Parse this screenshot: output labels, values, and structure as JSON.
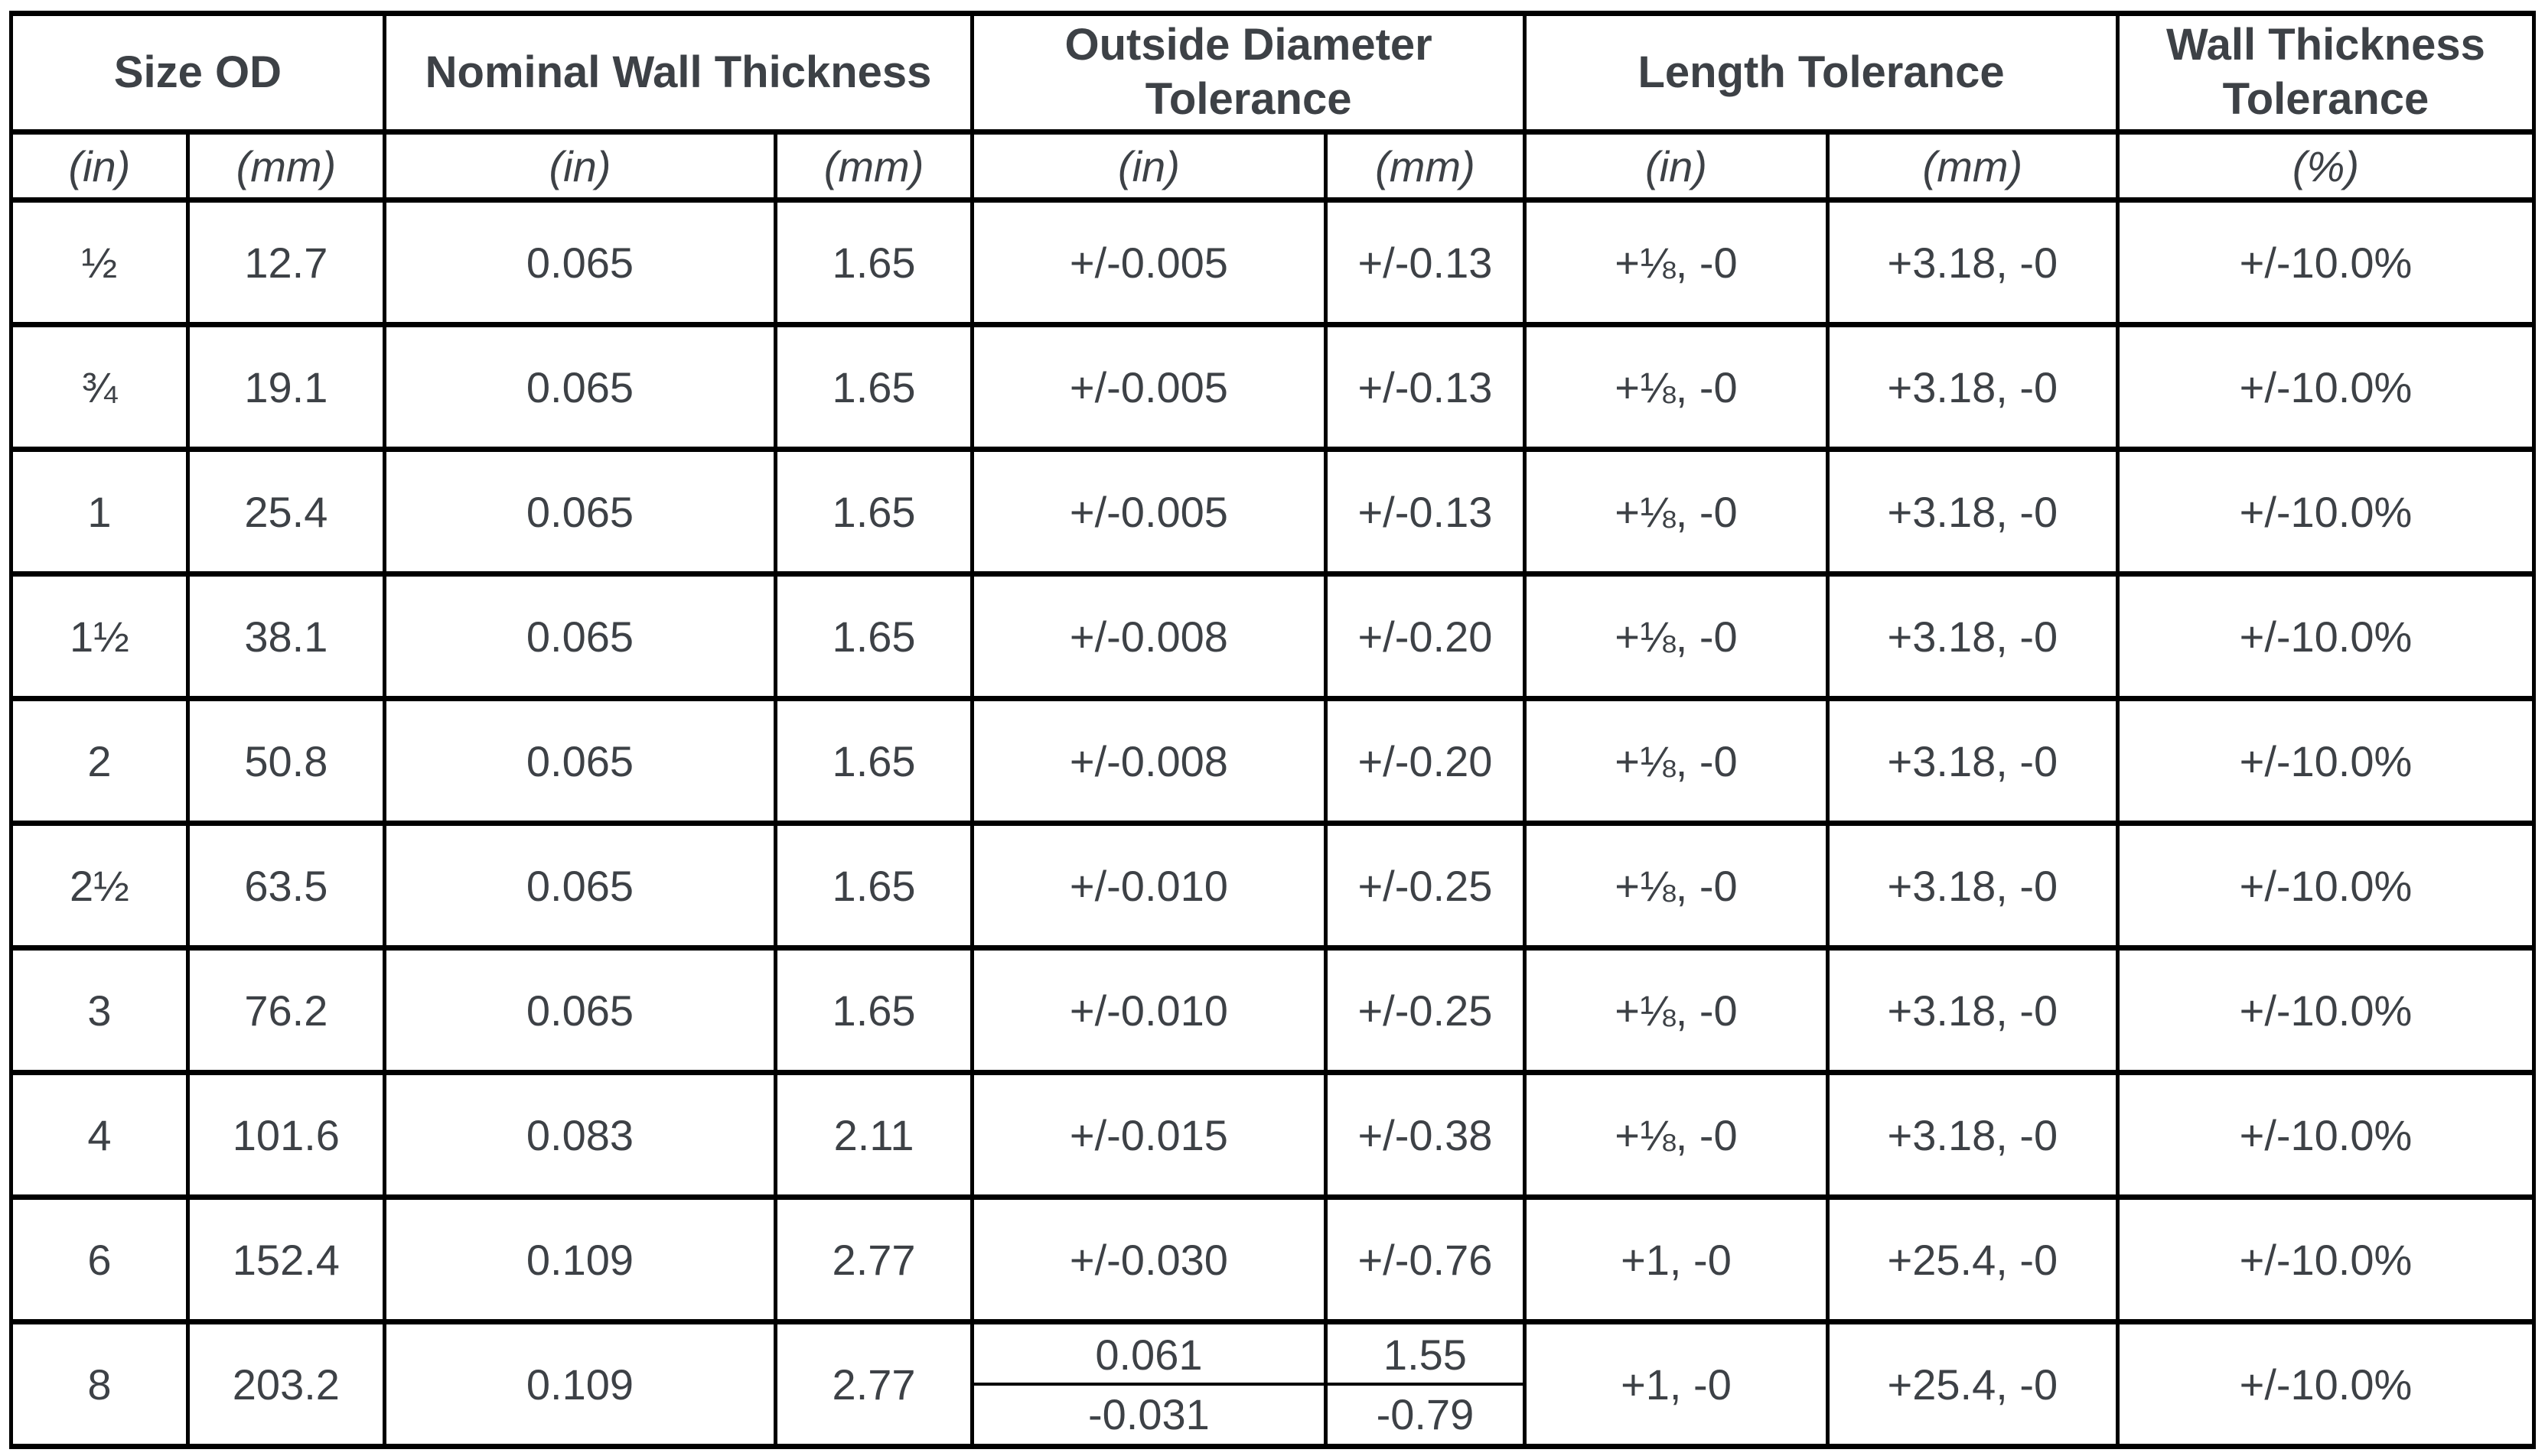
{
  "theme": {
    "text_color": "#3d4146",
    "border_color": "#000000",
    "background": "#ffffff"
  },
  "table": {
    "groups": [
      {
        "label": "Size OD",
        "span": 2
      },
      {
        "label": "Nominal Wall Thickness",
        "span": 2
      },
      {
        "label": "Outside Diameter Tolerance",
        "span": 2
      },
      {
        "label": "Length Tolerance",
        "span": 2
      },
      {
        "label": "Wall Thickness Tolerance",
        "span": 1
      }
    ],
    "subheaders": [
      "(in)",
      "(mm)",
      "(in)",
      "(mm)",
      "(in)",
      "(mm)",
      "(in)",
      "(mm)",
      "(%)"
    ],
    "rows": [
      [
        "½",
        "12.7",
        "0.065",
        "1.65",
        "+/-0.005",
        "+/-0.13",
        "+⅛, -0",
        "+3.18, -0",
        "+/-10.0%"
      ],
      [
        "¾",
        "19.1",
        "0.065",
        "1.65",
        "+/-0.005",
        "+/-0.13",
        "+⅛, -0",
        "+3.18, -0",
        "+/-10.0%"
      ],
      [
        "1",
        "25.4",
        "0.065",
        "1.65",
        "+/-0.005",
        "+/-0.13",
        "+⅛, -0",
        "+3.18, -0",
        "+/-10.0%"
      ],
      [
        "1½",
        "38.1",
        "0.065",
        "1.65",
        "+/-0.008",
        "+/-0.20",
        "+⅛, -0",
        "+3.18, -0",
        "+/-10.0%"
      ],
      [
        "2",
        "50.8",
        "0.065",
        "1.65",
        "+/-0.008",
        "+/-0.20",
        "+⅛, -0",
        "+3.18, -0",
        "+/-10.0%"
      ],
      [
        "2½",
        "63.5",
        "0.065",
        "1.65",
        "+/-0.010",
        "+/-0.25",
        "+⅛, -0",
        "+3.18, -0",
        "+/-10.0%"
      ],
      [
        "3",
        "76.2",
        "0.065",
        "1.65",
        "+/-0.010",
        "+/-0.25",
        "+⅛, -0",
        "+3.18, -0",
        "+/-10.0%"
      ],
      [
        "4",
        "101.6",
        "0.083",
        "2.11",
        "+/-0.015",
        "+/-0.38",
        "+⅛, -0",
        "+3.18, -0",
        "+/-10.0%"
      ],
      [
        "6",
        "152.4",
        "0.109",
        "2.77",
        "+/-0.030",
        "+/-0.76",
        "+1, -0",
        "+25.4, -0",
        "+/-10.0%"
      ],
      [
        "8",
        "203.2",
        "0.109",
        "2.77",
        {
          "top": "0.061",
          "bottom": "-0.031"
        },
        {
          "top": "1.55",
          "bottom": "-0.79"
        },
        "+1, -0",
        "+25.4, -0",
        "+/-10.0%"
      ]
    ]
  }
}
